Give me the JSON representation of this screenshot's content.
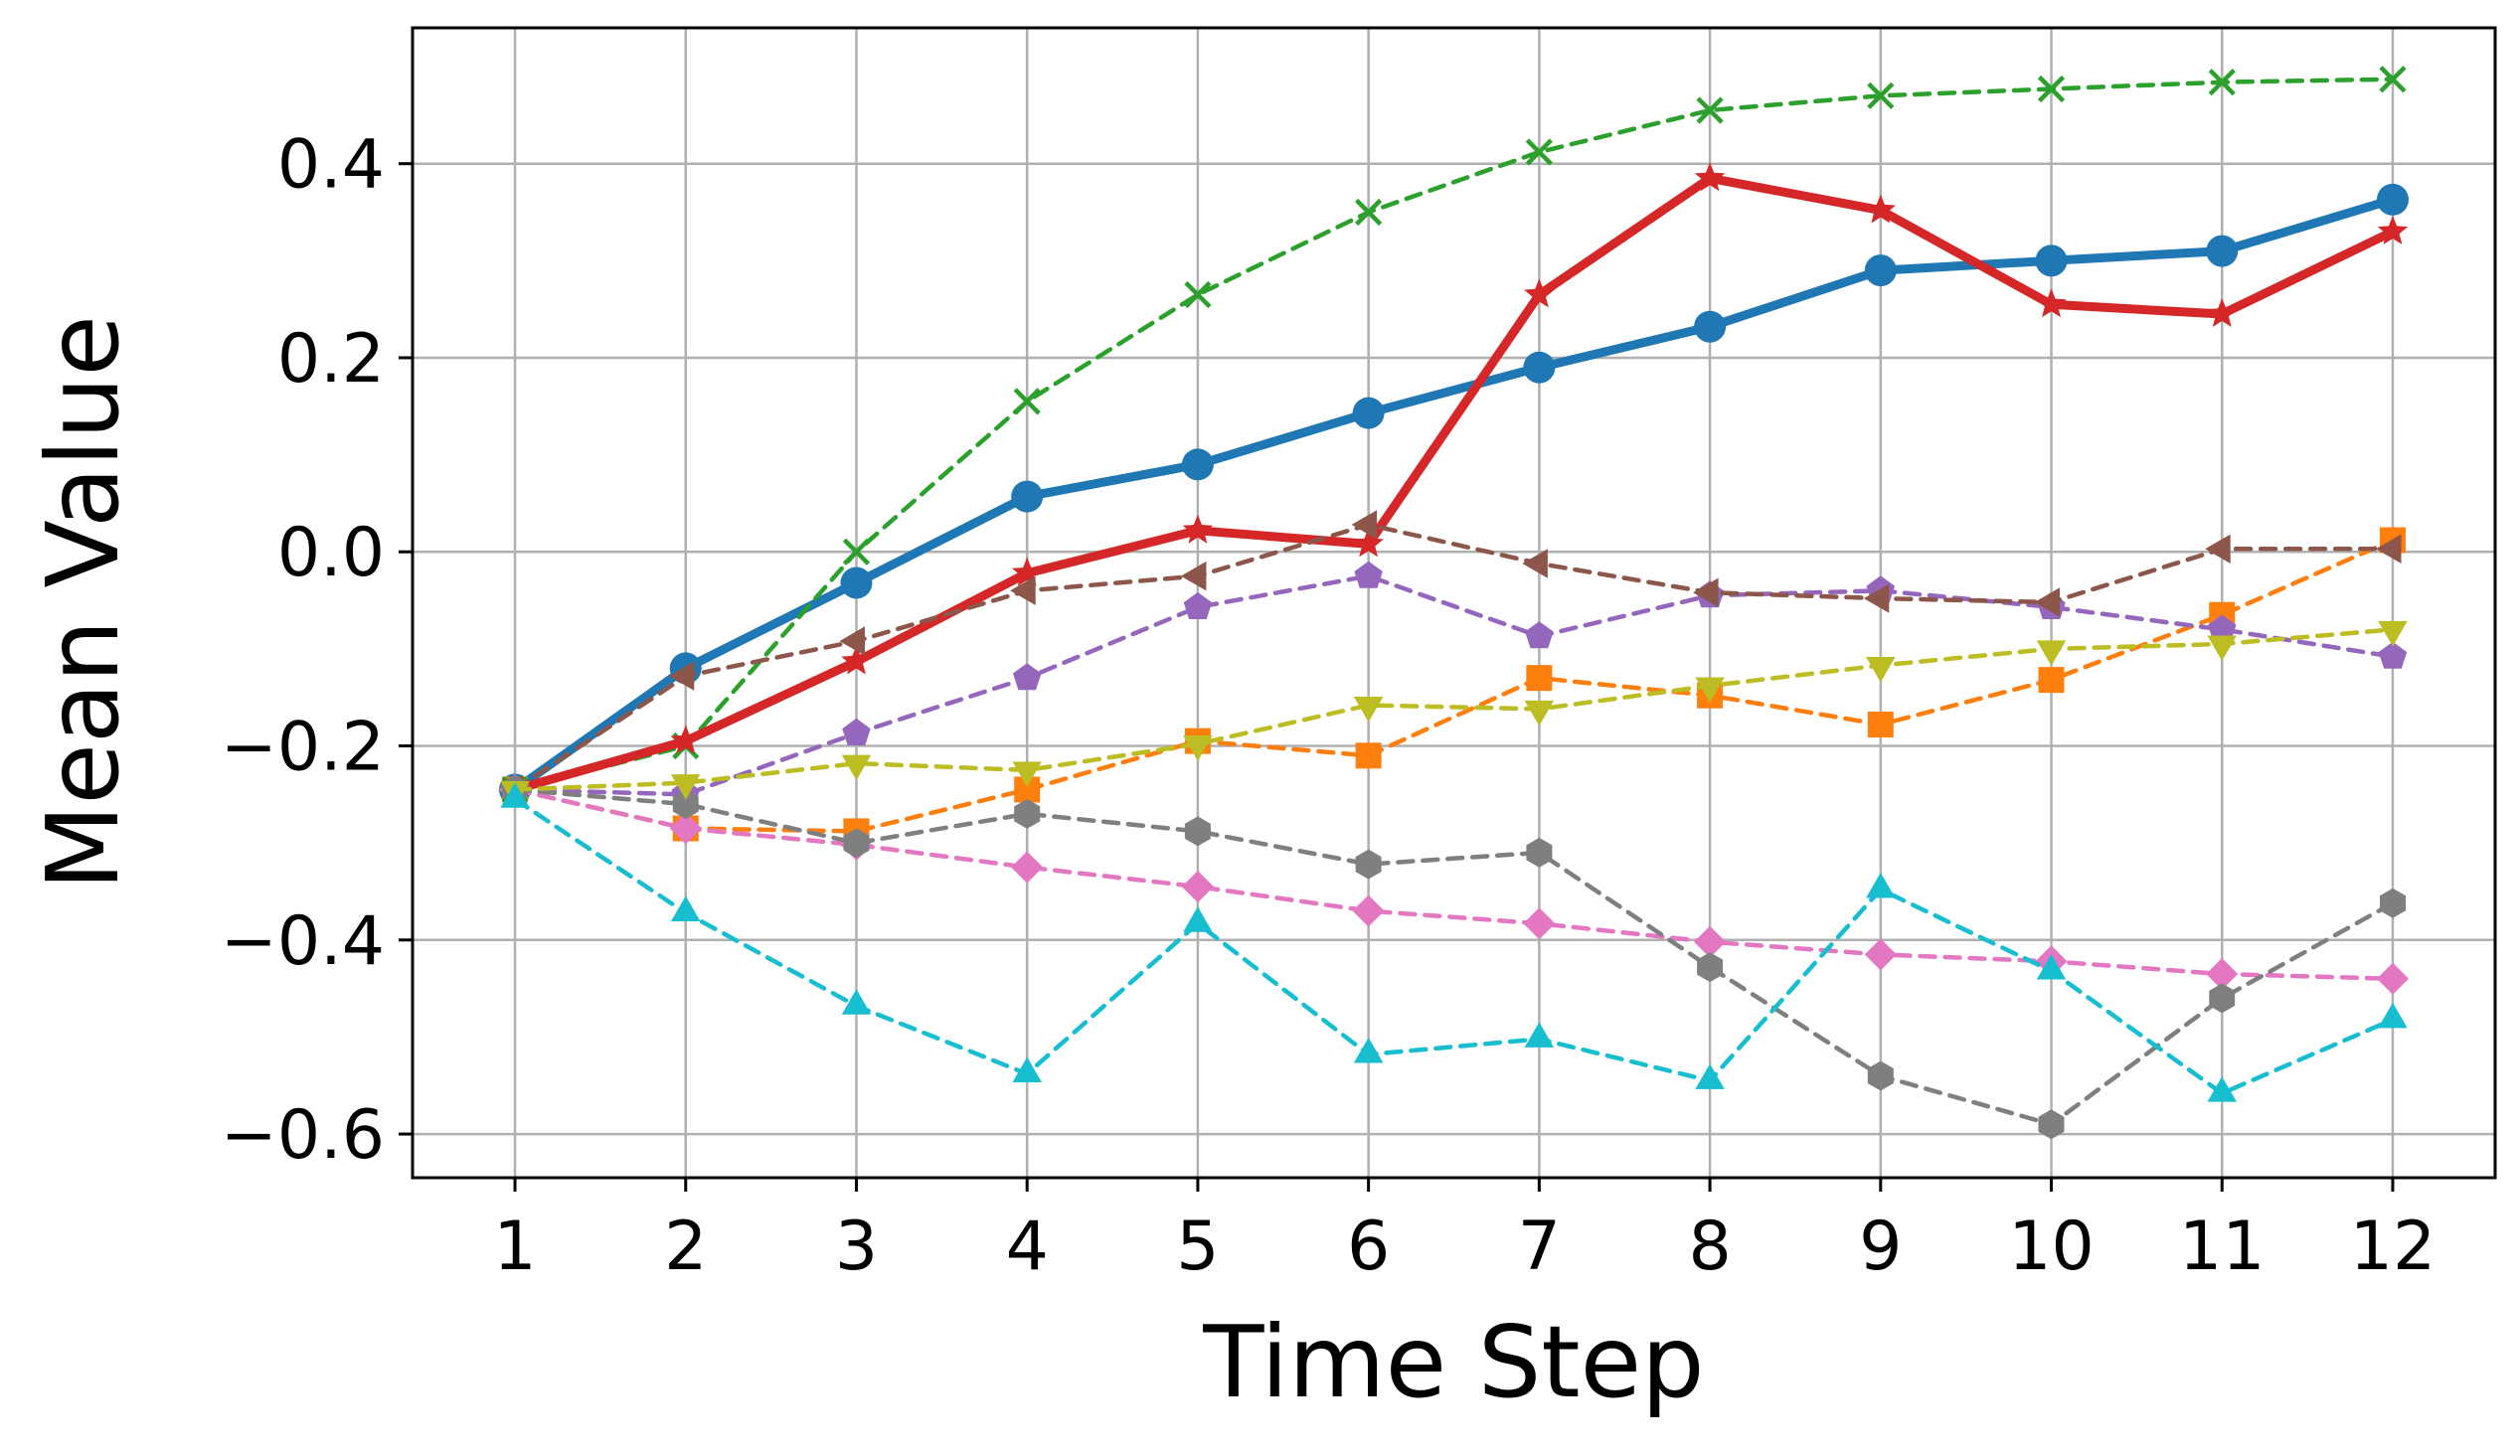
{
  "chart_data": {
    "type": "line",
    "xlabel": "Time Step",
    "ylabel": "Mean Value",
    "x": [
      1,
      2,
      3,
      4,
      5,
      6,
      7,
      8,
      9,
      10,
      11,
      12
    ],
    "xlim": [
      0.4,
      12.6
    ],
    "ylim": [
      -0.645,
      0.54
    ],
    "yticks": [
      -0.6,
      -0.4,
      -0.2,
      0.0,
      0.2,
      0.4
    ],
    "ytick_labels": [
      "−0.6",
      "−0.4",
      "−0.2",
      "0.0",
      "0.2",
      "0.4"
    ],
    "xtick_labels": [
      "1",
      "2",
      "3",
      "4",
      "5",
      "6",
      "7",
      "8",
      "9",
      "10",
      "11",
      "12"
    ],
    "grid": true,
    "legend": "none",
    "series": [
      {
        "color": "#1f77b4",
        "marker": "circle",
        "linestyle": "solid",
        "linewidth": 9,
        "values": [
          -0.245,
          -0.12,
          -0.032,
          0.057,
          0.09,
          0.143,
          0.19,
          0.232,
          0.29,
          0.3,
          0.31,
          0.363
        ]
      },
      {
        "color": "#ff7f0e",
        "marker": "square",
        "linestyle": "dashed",
        "linewidth": 4.5,
        "values": [
          -0.245,
          -0.285,
          -0.288,
          -0.245,
          -0.195,
          -0.21,
          -0.13,
          -0.148,
          -0.178,
          -0.132,
          -0.065,
          0.012
        ]
      },
      {
        "color": "#2ca02c",
        "marker": "x",
        "linestyle": "dashed",
        "linewidth": 4.5,
        "values": [
          -0.245,
          -0.2,
          0.0,
          0.155,
          0.265,
          0.35,
          0.412,
          0.455,
          0.47,
          0.477,
          0.484,
          0.487
        ]
      },
      {
        "color": "#d62728",
        "marker": "star",
        "linestyle": "solid",
        "linewidth": 9,
        "values": [
          -0.245,
          -0.195,
          -0.113,
          -0.022,
          0.022,
          0.008,
          0.265,
          0.385,
          0.352,
          0.255,
          0.245,
          0.33
        ]
      },
      {
        "color": "#9467bd",
        "marker": "pentagon",
        "linestyle": "dashed",
        "linewidth": 4.5,
        "values": [
          -0.245,
          -0.25,
          -0.187,
          -0.13,
          -0.057,
          -0.025,
          -0.087,
          -0.045,
          -0.04,
          -0.057,
          -0.08,
          -0.108
        ]
      },
      {
        "color": "#8c564b",
        "marker": "triangle-left",
        "linestyle": "dashed",
        "linewidth": 4.5,
        "values": [
          -0.245,
          -0.128,
          -0.092,
          -0.04,
          -0.025,
          0.028,
          -0.012,
          -0.042,
          -0.048,
          -0.052,
          0.003,
          0.003
        ]
      },
      {
        "color": "#e377c2",
        "marker": "diamond",
        "linestyle": "dashed",
        "linewidth": 4.5,
        "values": [
          -0.245,
          -0.285,
          -0.302,
          -0.325,
          -0.345,
          -0.37,
          -0.383,
          -0.402,
          -0.415,
          -0.422,
          -0.435,
          -0.44
        ]
      },
      {
        "color": "#7f7f7f",
        "marker": "hexagon",
        "linestyle": "dashed",
        "linewidth": 4.5,
        "values": [
          -0.245,
          -0.26,
          -0.3,
          -0.27,
          -0.288,
          -0.322,
          -0.31,
          -0.428,
          -0.54,
          -0.59,
          -0.46,
          -0.362
        ]
      },
      {
        "color": "#bcbd22",
        "marker": "triangle-down",
        "linestyle": "dashed",
        "linewidth": 4.5,
        "values": [
          -0.245,
          -0.238,
          -0.218,
          -0.225,
          -0.198,
          -0.158,
          -0.162,
          -0.138,
          -0.117,
          -0.1,
          -0.095,
          -0.08
        ]
      },
      {
        "color": "#17becf",
        "marker": "triangle-up",
        "linestyle": "dashed",
        "linewidth": 4.5,
        "values": [
          -0.255,
          -0.372,
          -0.468,
          -0.538,
          -0.383,
          -0.518,
          -0.502,
          -0.545,
          -0.348,
          -0.432,
          -0.558,
          -0.482
        ]
      }
    ]
  }
}
